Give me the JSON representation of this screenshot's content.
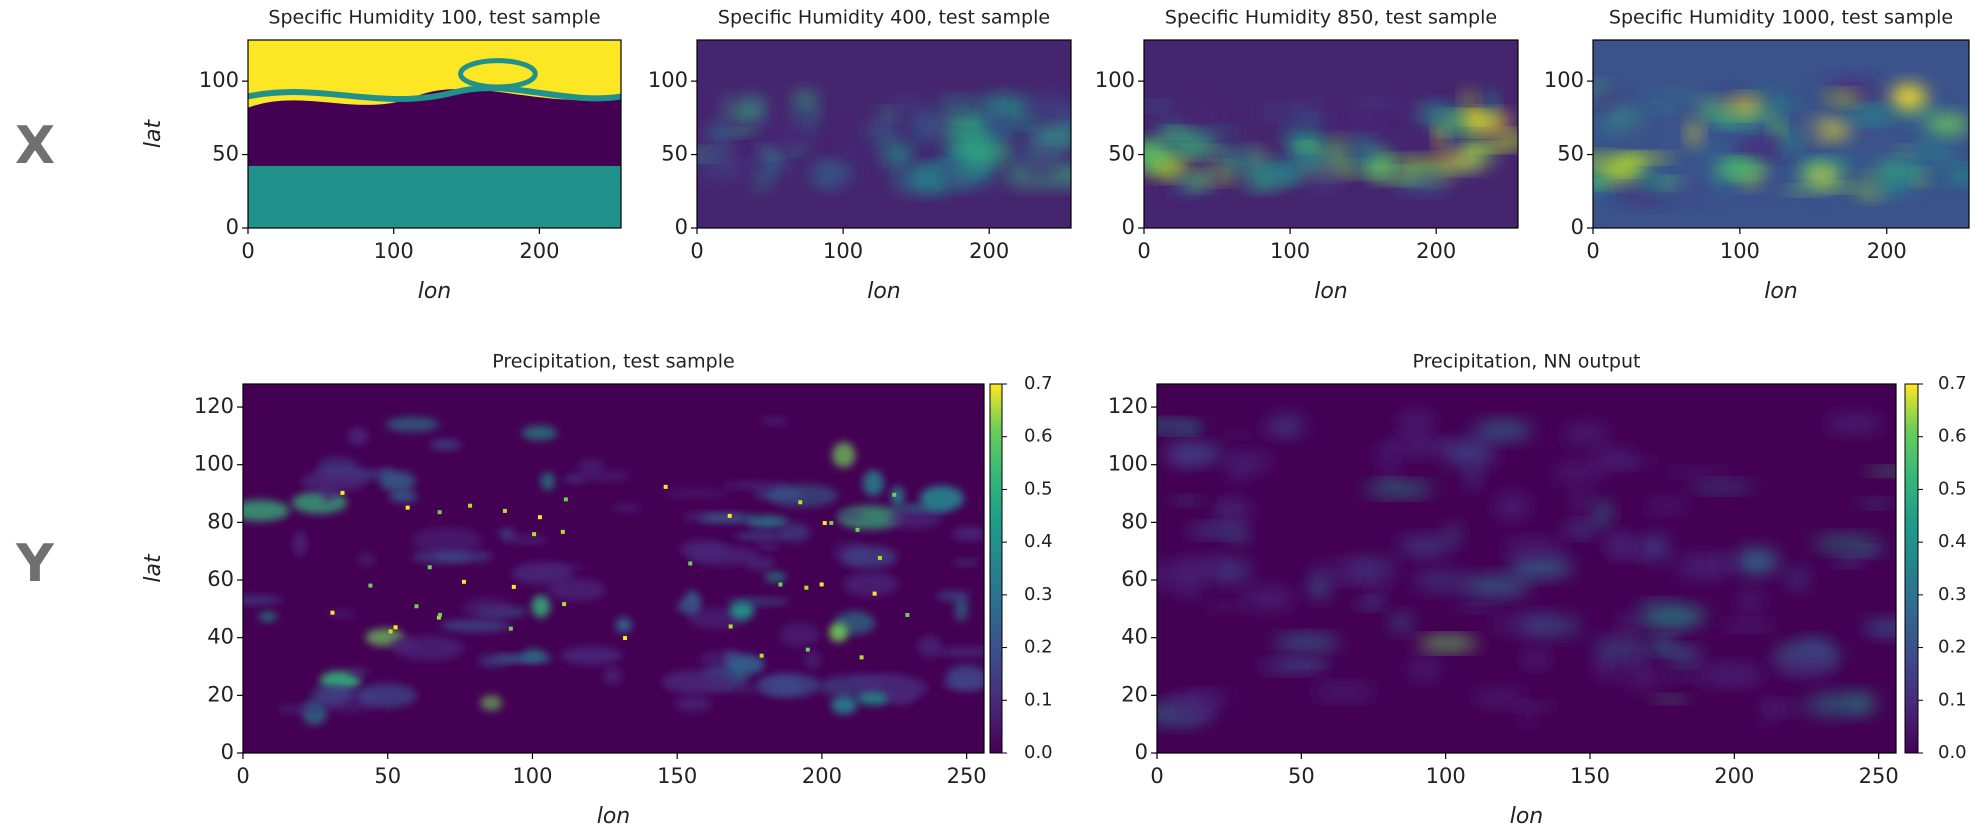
{
  "row_labels": [
    "X",
    "Y"
  ],
  "chart_data": [
    {
      "type": "heatmap",
      "title": "Specific Humidity 100, test sample",
      "xlabel": "lon",
      "ylabel": "lat",
      "xlim": [
        0,
        256
      ],
      "ylim": [
        0,
        128
      ],
      "xticks": [
        0,
        100,
        200
      ],
      "yticks": [
        0,
        50,
        100
      ],
      "cmap": "viridis"
    },
    {
      "type": "heatmap",
      "title": "Specific Humidity 400, test sample",
      "xlabel": "lon",
      "xlim": [
        0,
        256
      ],
      "ylim": [
        0,
        128
      ],
      "xticks": [
        0,
        100,
        200
      ],
      "yticks": [
        0,
        50,
        100
      ],
      "cmap": "viridis"
    },
    {
      "type": "heatmap",
      "title": "Specific Humidity 850, test sample",
      "xlabel": "lon",
      "xlim": [
        0,
        256
      ],
      "ylim": [
        0,
        128
      ],
      "xticks": [
        0,
        100,
        200
      ],
      "yticks": [
        0,
        50,
        100
      ],
      "cmap": "viridis"
    },
    {
      "type": "heatmap",
      "title": "Specific Humidity 1000, test sample",
      "xlabel": "lon",
      "xlim": [
        0,
        256
      ],
      "ylim": [
        0,
        128
      ],
      "xticks": [
        0,
        100,
        200
      ],
      "yticks": [
        0,
        50,
        100
      ],
      "cmap": "viridis"
    },
    {
      "type": "heatmap",
      "title": "Precipitation, test sample",
      "xlabel": "lon",
      "ylabel": "lat",
      "xlim": [
        0,
        256
      ],
      "ylim": [
        0,
        128
      ],
      "xticks": [
        0,
        50,
        100,
        150,
        200,
        250
      ],
      "yticks": [
        0,
        20,
        40,
        60,
        80,
        100,
        120
      ],
      "cmap": "viridis",
      "colorbar": {
        "lim": [
          0,
          0.7
        ],
        "ticks": [
          {
            "value": 0,
            "label": "0.0"
          },
          0.1,
          0.2,
          0.3,
          0.4,
          0.5,
          0.6,
          0.7
        ]
      }
    },
    {
      "type": "heatmap",
      "title": "Precipitation, NN output",
      "xlabel": "lon",
      "xlim": [
        0,
        256
      ],
      "ylim": [
        0,
        128
      ],
      "xticks": [
        0,
        50,
        100,
        150,
        200,
        250
      ],
      "yticks": [
        0,
        20,
        40,
        60,
        80,
        100,
        120
      ],
      "cmap": "viridis",
      "colorbar": {
        "lim": [
          0,
          0.7
        ],
        "ticks": [
          {
            "value": 0,
            "label": "0.0"
          },
          0.1,
          0.2,
          0.3,
          0.4,
          0.5,
          0.6,
          0.7
        ]
      }
    }
  ]
}
